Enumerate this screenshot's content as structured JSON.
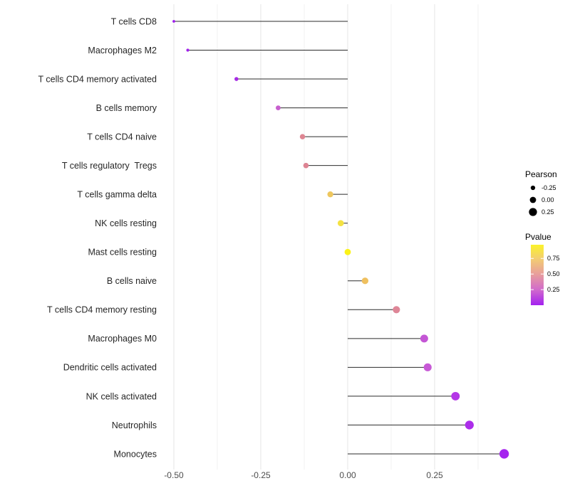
{
  "chart_data": {
    "type": "lollipop",
    "title": "",
    "xlabel": "",
    "ylabel": "",
    "xlim": [
      -0.547,
      0.497
    ],
    "x_ticks": [
      -0.5,
      -0.25,
      0.0,
      0.25
    ],
    "x_tick_labels": [
      "-0.50",
      "-0.25",
      "0.00",
      "0.25"
    ],
    "x_minor_ticks": [
      -0.375,
      -0.125,
      0.125,
      0.375
    ],
    "grid": true,
    "categories": [
      "T cells CD8",
      "Macrophages M2",
      "T cells CD4 memory activated",
      "B cells memory",
      "T cells CD4 naive",
      "T cells regulatory  Tregs",
      "T cells gamma delta",
      "NK cells resting",
      "Mast cells resting",
      "B cells naive",
      "T cells CD4 memory resting",
      "Macrophages M0",
      "Dendritic cells activated",
      "NK cells activated",
      "Neutrophils",
      "Monocytes"
    ],
    "series": [
      {
        "name": "Pearson",
        "values": [
          -0.5,
          -0.46,
          -0.32,
          -0.2,
          -0.13,
          -0.12,
          -0.05,
          -0.02,
          0.0,
          0.05,
          0.14,
          0.22,
          0.23,
          0.31,
          0.35,
          0.45
        ]
      },
      {
        "name": "Pvalue",
        "values": [
          0.01,
          0.04,
          0.1,
          0.3,
          0.52,
          0.53,
          0.78,
          0.9,
          0.97,
          0.8,
          0.5,
          0.28,
          0.27,
          0.13,
          0.08,
          0.03
        ]
      }
    ],
    "points": [
      {
        "label": "T cells CD8",
        "pearson": -0.5,
        "pvalue": 0.01,
        "color": "#9D1CEC"
      },
      {
        "label": "Macrophages M2",
        "pearson": -0.46,
        "pvalue": 0.04,
        "color": "#A122EC"
      },
      {
        "label": "T cells CD4 memory activated",
        "pearson": -0.32,
        "pvalue": 0.1,
        "color": "#A62BE4"
      },
      {
        "label": "B cells memory",
        "pearson": -0.2,
        "pvalue": 0.3,
        "color": "#C75FCE"
      },
      {
        "label": "T cells CD4 naive",
        "pearson": -0.13,
        "pvalue": 0.52,
        "color": "#DE8592"
      },
      {
        "label": "T cells regulatory  Tregs",
        "pearson": -0.12,
        "pvalue": 0.53,
        "color": "#DD8493"
      },
      {
        "label": "T cells gamma delta",
        "pearson": -0.05,
        "pvalue": 0.78,
        "color": "#EEC75E"
      },
      {
        "label": "NK cells resting",
        "pearson": -0.02,
        "pvalue": 0.9,
        "color": "#F4E243"
      },
      {
        "label": "Mast cells resting",
        "pearson": 0.0,
        "pvalue": 0.97,
        "color": "#FBF218"
      },
      {
        "label": "B cells naive",
        "pearson": 0.05,
        "pvalue": 0.8,
        "color": "#EFC05F"
      },
      {
        "label": "T cells CD4 memory resting",
        "pearson": 0.14,
        "pvalue": 0.5,
        "color": "#DE8697"
      },
      {
        "label": "Macrophages M0",
        "pearson": 0.22,
        "pvalue": 0.28,
        "color": "#C456D5"
      },
      {
        "label": "Dendritic cells activated",
        "pearson": 0.23,
        "pvalue": 0.27,
        "color": "#C759D6"
      },
      {
        "label": "NK cells activated",
        "pearson": 0.31,
        "pvalue": 0.13,
        "color": "#B437E7"
      },
      {
        "label": "Neutrophils",
        "pearson": 0.35,
        "pvalue": 0.08,
        "color": "#AC2DEA"
      },
      {
        "label": "Monocytes",
        "pearson": 0.45,
        "pvalue": 0.03,
        "color": "#A524EE"
      }
    ],
    "legend": {
      "position": "right",
      "size_legend": {
        "title": "Pearson",
        "entries": [
          {
            "label": "-0.25",
            "value": -0.25
          },
          {
            "label": "0.00",
            "value": 0.0
          },
          {
            "label": "0.25",
            "value": 0.25
          }
        ],
        "dot_color": "#000000"
      },
      "color_legend": {
        "title": "Pvalue",
        "tick_labels": [
          "0.75",
          "0.50",
          "0.25"
        ],
        "tick_values": [
          0.75,
          0.5,
          0.25
        ],
        "bar_range": [
          0.0,
          0.97
        ],
        "gradient_low": "#A020F0",
        "gradient_high": "#FBF32A",
        "gradient_stops": [
          {
            "offset": 0.0,
            "color": "#FBF32A"
          },
          {
            "offset": 0.227,
            "color": "#F3CE71"
          },
          {
            "offset": 0.485,
            "color": "#E89E9C"
          },
          {
            "offset": 0.742,
            "color": "#D16BCB"
          },
          {
            "offset": 1.0,
            "color": "#A321F0"
          }
        ]
      }
    },
    "style": {
      "segment_color": "#2B2B2B",
      "major_grid_color": "#E4E4E4",
      "minor_grid_color": "#F1F1F1",
      "background": "#FFFFFF"
    }
  }
}
